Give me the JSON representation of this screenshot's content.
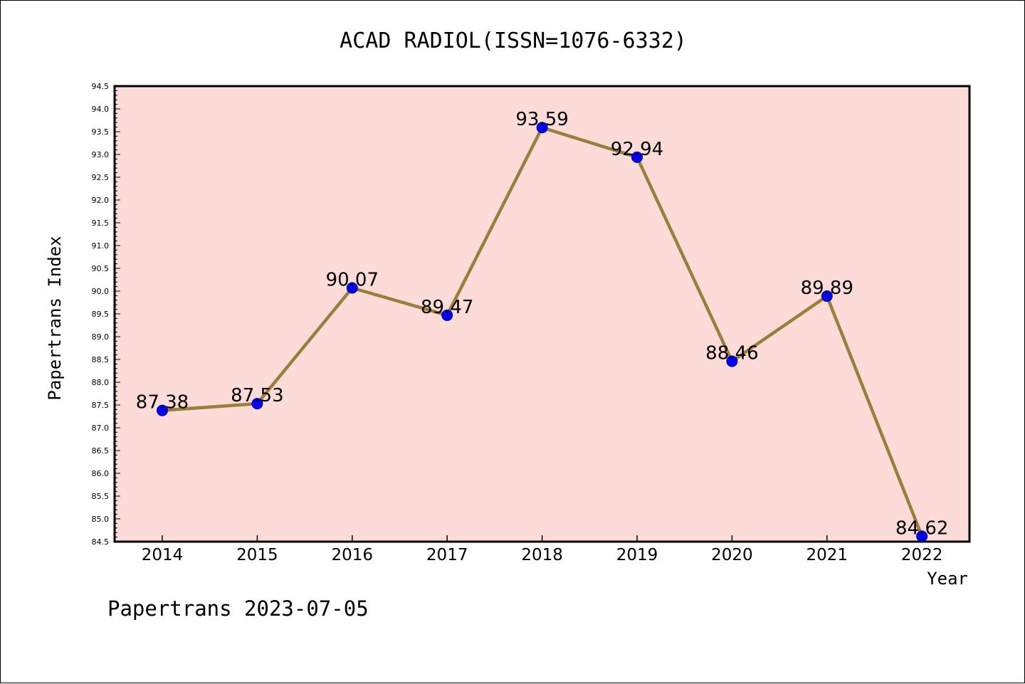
{
  "chart_data": {
    "type": "line",
    "title": "ACAD RADIOL(ISSN=1076-6332)",
    "xlabel": "Year",
    "ylabel": "Papertrans Index",
    "categories": [
      "2014",
      "2015",
      "2016",
      "2017",
      "2018",
      "2019",
      "2020",
      "2021",
      "2022"
    ],
    "series": [
      {
        "values": [
          87.38,
          87.53,
          90.07,
          89.47,
          93.59,
          92.94,
          88.46,
          89.89,
          84.62
        ],
        "labels": [
          "87.38",
          "87.53",
          "90.07",
          "89.47",
          "93.59",
          "92.94",
          "88.46",
          "89.89",
          "84.62"
        ]
      }
    ],
    "ylim": [
      84.5,
      94.5
    ],
    "yticks": [
      "84.5",
      "85.0",
      "85.5",
      "86.0",
      "86.5",
      "87.0",
      "87.5",
      "88.0",
      "88.5",
      "89.0",
      "89.5",
      "90.0",
      "90.5",
      "91.0",
      "91.5",
      "92.0",
      "92.5",
      "93.0",
      "93.5",
      "94.0",
      "94.5"
    ],
    "grid": false,
    "colors": {
      "plot_background": "#fddbd9",
      "line": "#9a7e3a",
      "marker": "#0000ff"
    }
  },
  "footer": "Papertrans 2023-07-05"
}
